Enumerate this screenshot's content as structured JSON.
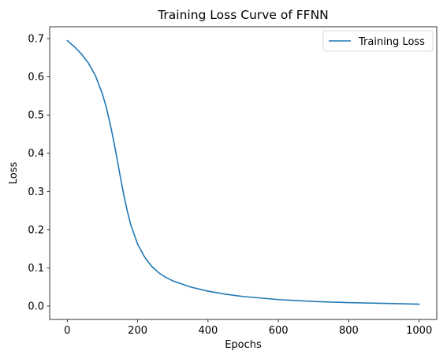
{
  "chart_data": {
    "type": "line",
    "title": "Training Loss Curve of FFNN",
    "xlabel": "Epochs",
    "ylabel": "Loss",
    "xlim": [
      -50,
      1050
    ],
    "ylim": [
      -0.035,
      0.731
    ],
    "xticks": [
      0,
      200,
      400,
      600,
      800,
      1000
    ],
    "xtick_labels": [
      "0",
      "200",
      "400",
      "600",
      "800",
      "1000"
    ],
    "yticks": [
      0.0,
      0.1,
      0.2,
      0.3,
      0.4,
      0.5,
      0.6,
      0.7
    ],
    "ytick_labels": [
      "0.0",
      "0.1",
      "0.2",
      "0.3",
      "0.4",
      "0.5",
      "0.6",
      "0.7"
    ],
    "grid": false,
    "legend_position": "top-right",
    "series": [
      {
        "name": "Training Loss",
        "color": "#1f77b4",
        "x": [
          0,
          20,
          40,
          60,
          80,
          100,
          110,
          120,
          130,
          140,
          150,
          160,
          170,
          180,
          200,
          220,
          240,
          260,
          280,
          300,
          350,
          400,
          450,
          500,
          600,
          700,
          800,
          900,
          1000
        ],
        "y": [
          0.695,
          0.679,
          0.66,
          0.636,
          0.603,
          0.555,
          0.523,
          0.485,
          0.441,
          0.393,
          0.342,
          0.294,
          0.251,
          0.214,
          0.162,
          0.128,
          0.104,
          0.087,
          0.075,
          0.066,
          0.05,
          0.039,
          0.031,
          0.025,
          0.017,
          0.012,
          0.009,
          0.007,
          0.005
        ]
      }
    ]
  }
}
